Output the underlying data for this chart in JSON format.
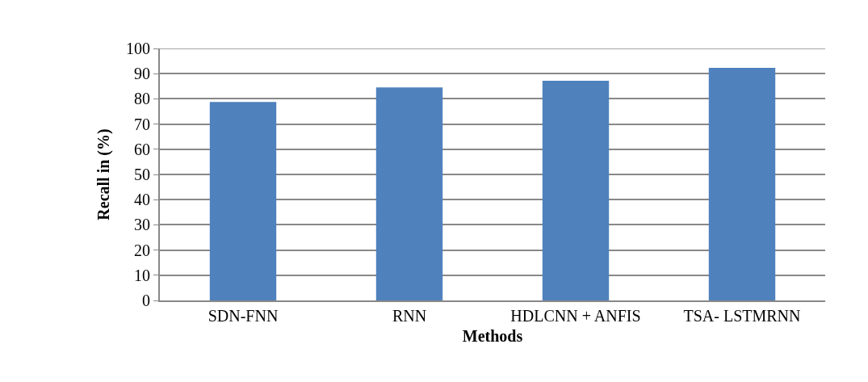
{
  "chart_data": {
    "type": "bar",
    "xlabel": "Methods",
    "ylabel": "Recall in (%)",
    "categories": [
      "SDN-FNN",
      "RNN",
      "HDLCNN + ANFIS",
      "TSA- LSTMRNN"
    ],
    "values": [
      78.8,
      84.5,
      87.2,
      92.3
    ],
    "color": "#4f81bd",
    "ylim": [
      0,
      100
    ],
    "yticks": [
      0,
      10,
      20,
      30,
      40,
      50,
      60,
      70,
      80,
      90,
      100
    ],
    "grid": "y"
  }
}
